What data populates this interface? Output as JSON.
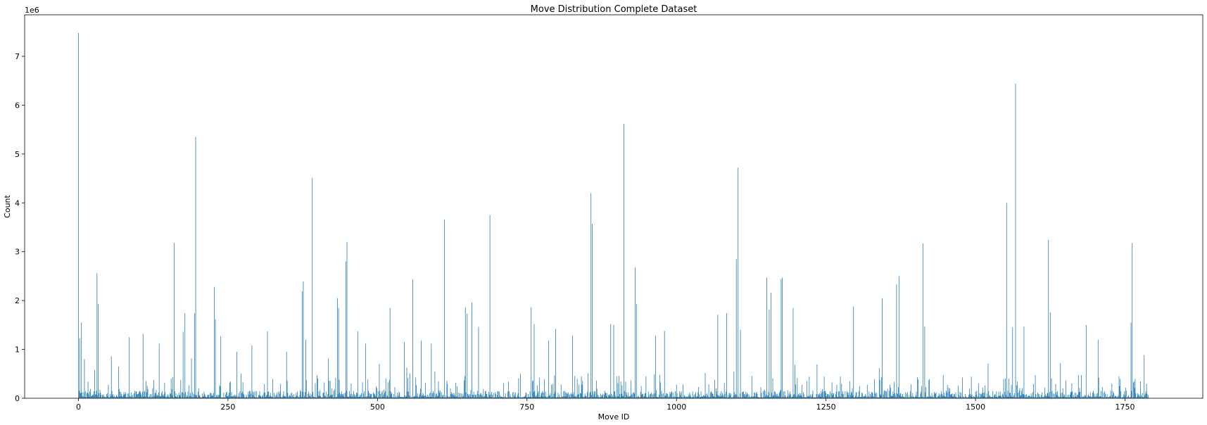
{
  "chart_data": {
    "type": "bar",
    "title": "Move Distribution Complete Dataset",
    "xlabel": "Move ID",
    "ylabel": "Count",
    "y_offset_text": "1e6",
    "xlim": [
      -90,
      1880
    ],
    "ylim": [
      0,
      7.85
    ],
    "y_unit_multiplier": 1000000,
    "x_ticks": [
      0,
      250,
      500,
      750,
      1000,
      1250,
      1500,
      1750
    ],
    "y_ticks": [
      0,
      1,
      2,
      3,
      4,
      5,
      6,
      7
    ],
    "grid": false,
    "bar_color": "#1f77b4",
    "n_moves": 1790,
    "peaks": [
      {
        "x": 0,
        "y": 7.48
      },
      {
        "x": 2,
        "y": 1.22
      },
      {
        "x": 5,
        "y": 1.55
      },
      {
        "x": 10,
        "y": 0.8
      },
      {
        "x": 31,
        "y": 2.56
      },
      {
        "x": 33,
        "y": 1.93
      },
      {
        "x": 55,
        "y": 0.86
      },
      {
        "x": 67,
        "y": 0.65
      },
      {
        "x": 85,
        "y": 1.25
      },
      {
        "x": 108,
        "y": 1.32
      },
      {
        "x": 135,
        "y": 1.12
      },
      {
        "x": 160,
        "y": 3.18
      },
      {
        "x": 175,
        "y": 1.36
      },
      {
        "x": 178,
        "y": 1.74
      },
      {
        "x": 194,
        "y": 1.74
      },
      {
        "x": 196,
        "y": 5.35
      },
      {
        "x": 227,
        "y": 2.28
      },
      {
        "x": 229,
        "y": 1.62
      },
      {
        "x": 238,
        "y": 1.27
      },
      {
        "x": 265,
        "y": 0.95
      },
      {
        "x": 290,
        "y": 1.08
      },
      {
        "x": 316,
        "y": 1.37
      },
      {
        "x": 348,
        "y": 0.95
      },
      {
        "x": 374,
        "y": 2.19
      },
      {
        "x": 376,
        "y": 2.39
      },
      {
        "x": 380,
        "y": 1.2
      },
      {
        "x": 391,
        "y": 4.51
      },
      {
        "x": 418,
        "y": 0.81
      },
      {
        "x": 433,
        "y": 2.05
      },
      {
        "x": 435,
        "y": 1.85
      },
      {
        "x": 447,
        "y": 2.8
      },
      {
        "x": 449,
        "y": 3.2
      },
      {
        "x": 467,
        "y": 1.37
      },
      {
        "x": 480,
        "y": 1.12
      },
      {
        "x": 521,
        "y": 1.85
      },
      {
        "x": 545,
        "y": 1.15
      },
      {
        "x": 559,
        "y": 2.43
      },
      {
        "x": 573,
        "y": 1.18
      },
      {
        "x": 590,
        "y": 1.12
      },
      {
        "x": 612,
        "y": 3.66
      },
      {
        "x": 647,
        "y": 1.86
      },
      {
        "x": 650,
        "y": 1.73
      },
      {
        "x": 658,
        "y": 1.96
      },
      {
        "x": 669,
        "y": 1.46
      },
      {
        "x": 688,
        "y": 3.75
      },
      {
        "x": 757,
        "y": 1.86
      },
      {
        "x": 762,
        "y": 1.52
      },
      {
        "x": 786,
        "y": 1.18
      },
      {
        "x": 798,
        "y": 1.42
      },
      {
        "x": 826,
        "y": 1.28
      },
      {
        "x": 857,
        "y": 4.2
      },
      {
        "x": 859,
        "y": 3.57
      },
      {
        "x": 890,
        "y": 1.52
      },
      {
        "x": 895,
        "y": 1.5
      },
      {
        "x": 912,
        "y": 5.62
      },
      {
        "x": 931,
        "y": 2.68
      },
      {
        "x": 933,
        "y": 1.93
      },
      {
        "x": 965,
        "y": 1.28
      },
      {
        "x": 980,
        "y": 1.38
      },
      {
        "x": 1069,
        "y": 1.71
      },
      {
        "x": 1084,
        "y": 1.74
      },
      {
        "x": 1100,
        "y": 2.85
      },
      {
        "x": 1103,
        "y": 4.72
      },
      {
        "x": 1107,
        "y": 1.4
      },
      {
        "x": 1151,
        "y": 2.47
      },
      {
        "x": 1155,
        "y": 1.82
      },
      {
        "x": 1158,
        "y": 2.16
      },
      {
        "x": 1175,
        "y": 2.44
      },
      {
        "x": 1177,
        "y": 2.47
      },
      {
        "x": 1195,
        "y": 1.85
      },
      {
        "x": 1296,
        "y": 1.88
      },
      {
        "x": 1344,
        "y": 2.05
      },
      {
        "x": 1368,
        "y": 2.33
      },
      {
        "x": 1372,
        "y": 2.5
      },
      {
        "x": 1412,
        "y": 3.17
      },
      {
        "x": 1415,
        "y": 1.47
      },
      {
        "x": 1552,
        "y": 4.0
      },
      {
        "x": 1562,
        "y": 1.45
      },
      {
        "x": 1567,
        "y": 6.44
      },
      {
        "x": 1581,
        "y": 1.47
      },
      {
        "x": 1622,
        "y": 3.24
      },
      {
        "x": 1625,
        "y": 1.76
      },
      {
        "x": 1685,
        "y": 1.5
      },
      {
        "x": 1705,
        "y": 1.2
      },
      {
        "x": 1760,
        "y": 1.55
      },
      {
        "x": 1762,
        "y": 3.18
      },
      {
        "x": 1782,
        "y": 0.88
      }
    ],
    "baseline": "remaining Move IDs (0–1789) have small counts, mostly below 0.5e6"
  }
}
